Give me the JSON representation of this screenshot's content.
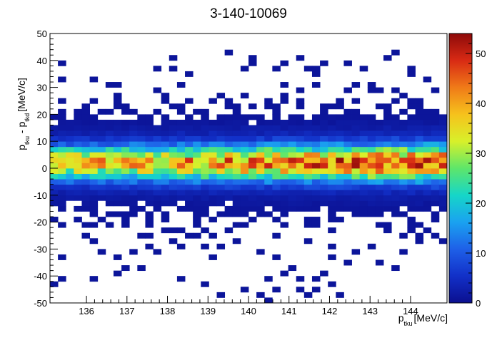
{
  "chart_data": {
    "type": "heatmap",
    "title": "3-140-10069",
    "xlabel": {
      "p": "p",
      "sub": "tku",
      "unit": "[MeV/c]"
    },
    "ylabel": {
      "p1": "p",
      "sub1": "tku",
      "minus": " - ",
      "p2": "p",
      "sub2": "tkd",
      "unit": "[MeV/c]"
    },
    "xlim": [
      135.1,
      144.9
    ],
    "ylim": [
      -50,
      50
    ],
    "xticks": [
      "136",
      "137",
      "138",
      "139",
      "140",
      "141",
      "142",
      "143",
      "144"
    ],
    "xtick_values": [
      136,
      137,
      138,
      139,
      140,
      141,
      142,
      143,
      144
    ],
    "yticks": [
      "-50",
      "-40",
      "-30",
      "-20",
      "-10",
      "0",
      "10",
      "20",
      "30",
      "40",
      "50"
    ],
    "ytick_values": [
      -50,
      -40,
      -30,
      -20,
      -10,
      0,
      10,
      20,
      30,
      40,
      50
    ],
    "zlim": [
      0,
      54
    ],
    "zticks": [
      "0",
      "10",
      "20",
      "30",
      "40",
      "50"
    ],
    "ztick_values": [
      0,
      10,
      20,
      30,
      40,
      50
    ],
    "x_bins": 50,
    "y_bins": 50,
    "peak_y": 2,
    "palette": [
      "#0b0f8f",
      "#1230c8",
      "#1e60e8",
      "#1aa2f0",
      "#16d6c8",
      "#5ee66a",
      "#d8f02a",
      "#f6c21c",
      "#f07a18",
      "#d82a14",
      "#8e0a0a"
    ],
    "sparse_points": [
      [
        135.3,
        38
      ],
      [
        135.4,
        32
      ],
      [
        136.2,
        33
      ],
      [
        136.5,
        30
      ],
      [
        137.1,
        21
      ],
      [
        137.7,
        36
      ],
      [
        138.2,
        40
      ],
      [
        138.1,
        37
      ],
      [
        138.6,
        34
      ],
      [
        139.6,
        42
      ],
      [
        139.9,
        37
      ],
      [
        140.0,
        38
      ],
      [
        140.1,
        40
      ],
      [
        140.6,
        36
      ],
      [
        140.8,
        39
      ],
      [
        141.3,
        40
      ],
      [
        141.5,
        37
      ],
      [
        141.7,
        36
      ],
      [
        141.9,
        39
      ],
      [
        142.4,
        38
      ],
      [
        142.7,
        31
      ],
      [
        142.9,
        36
      ],
      [
        143.1,
        31
      ],
      [
        143.4,
        40
      ],
      [
        143.2,
        28
      ],
      [
        144.0,
        34
      ],
      [
        144.5,
        33
      ],
      [
        144.1,
        37
      ],
      [
        143.7,
        42
      ],
      [
        140.9,
        31
      ],
      [
        141.6,
        30
      ],
      [
        142.6,
        25
      ],
      [
        136.9,
        22
      ],
      [
        138.5,
        24
      ],
      [
        139.3,
        26
      ],
      [
        140.4,
        23
      ],
      [
        140.8,
        27
      ],
      [
        141.2,
        28
      ],
      [
        143.9,
        27
      ],
      [
        144.7,
        29
      ],
      [
        135.9,
        -25
      ],
      [
        136.1,
        -28
      ],
      [
        136.4,
        -31
      ],
      [
        136.7,
        -34
      ],
      [
        136.9,
        -37
      ],
      [
        137.2,
        -32
      ],
      [
        137.5,
        -29
      ],
      [
        137.8,
        -31
      ],
      [
        138.2,
        -27
      ],
      [
        138.4,
        -30
      ],
      [
        138.7,
        -25
      ],
      [
        138.9,
        -29
      ],
      [
        139.2,
        -33
      ],
      [
        139.5,
        -24
      ],
      [
        139.8,
        -27
      ],
      [
        140.3,
        -31
      ],
      [
        140.7,
        -33
      ],
      [
        141.0,
        -37
      ],
      [
        141.3,
        -41
      ],
      [
        141.2,
        -45
      ],
      [
        141.4,
        -48
      ],
      [
        141.6,
        -42
      ],
      [
        141.8,
        -39
      ],
      [
        142.1,
        -34
      ],
      [
        142.4,
        -36
      ],
      [
        142.7,
        -31
      ],
      [
        143.0,
        -29
      ],
      [
        143.3,
        -35
      ],
      [
        143.6,
        -37
      ],
      [
        143.9,
        -31
      ],
      [
        144.2,
        -27
      ],
      [
        144.5,
        -24
      ],
      [
        144.8,
        -28
      ],
      [
        135.3,
        -34
      ],
      [
        135.4,
        -41
      ],
      [
        135.2,
        -44
      ],
      [
        136.2,
        -41
      ],
      [
        136.8,
        -40
      ],
      [
        137.4,
        -38
      ],
      [
        138.4,
        -41
      ],
      [
        139.0,
        -44
      ],
      [
        139.9,
        -45
      ],
      [
        140.2,
        -48
      ],
      [
        140.4,
        -42
      ],
      [
        140.6,
        -46
      ],
      [
        140.9,
        -40
      ],
      [
        141.7,
        -45
      ],
      [
        142.0,
        -43
      ],
      [
        142.3,
        -47
      ],
      [
        140.4,
        -49
      ],
      [
        139.3,
        -47
      ],
      [
        140.7,
        -26
      ],
      [
        142.0,
        -30
      ],
      [
        143.3,
        -22
      ],
      [
        144.0,
        -23
      ],
      [
        144.6,
        -25
      ]
    ]
  },
  "colors": {
    "axis": "#000000",
    "background": "#ffffff"
  }
}
